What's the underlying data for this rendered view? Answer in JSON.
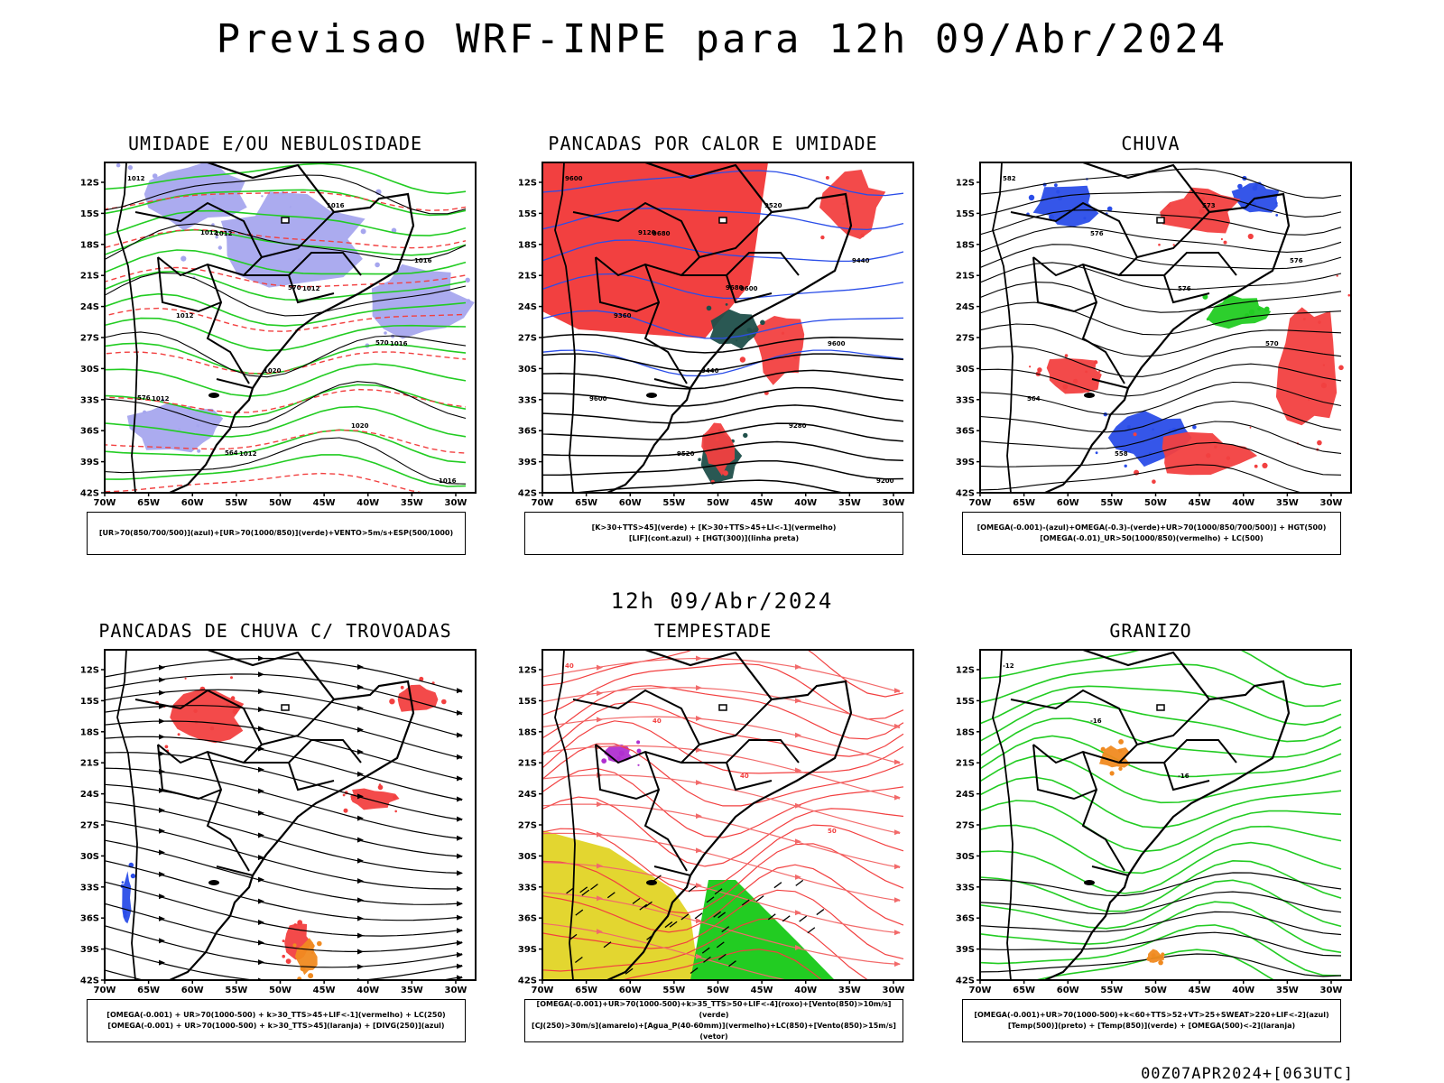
{
  "title": "Previsao WRF-INPE  para 12h 09/Abr/2024",
  "mid_title": "12h 09/Abr/2024",
  "run_stamp": "00Z07APR2024+[063UTC]",
  "axes": {
    "lat_labels": [
      "12S",
      "15S",
      "18S",
      "21S",
      "24S",
      "27S",
      "30S",
      "33S",
      "36S",
      "39S",
      "42S"
    ],
    "lon_labels": [
      "70W",
      "65W",
      "60W",
      "55W",
      "50W",
      "45W",
      "40W",
      "35W",
      "30W"
    ]
  },
  "colors": {
    "red": "#f24040",
    "blue": "#2a4de8",
    "green": "#22cc22",
    "lavender": "#a6a6ee",
    "darkteal": "#1f4f4a",
    "yellow": "#e3d630",
    "orange": "#f08a20",
    "purple": "#b030d0",
    "salmon": "#f26a6a"
  },
  "panels": [
    {
      "title": "UMIDADE E/OU NEBULOSIDADE",
      "legend": [
        "[UR>70(850/700/500)](azul)+[UR>70(1000/850)](verde)+VENTO>5m/s+ESP(500/1000)"
      ],
      "labels": [
        "1012",
        "1012",
        "1012",
        "1016",
        "1012",
        "1012",
        "1016",
        "1016",
        "1012",
        "1020",
        "1020",
        "1016",
        "1012",
        "570",
        "570",
        "576",
        "564"
      ]
    },
    {
      "title": "PANCADAS POR CALOR E UMIDADE",
      "legend": [
        "[K>30+TTS>45](verde) + [K>30+TTS>45+LI<-1](vermelho)",
        "[LIF](cont.azul) + [HGT(300)](linha preta)"
      ],
      "labels": [
        "9600",
        "9680",
        "9600",
        "9600",
        "9600",
        "9520",
        "9520",
        "9440",
        "9360",
        "9440",
        "9280",
        "9200",
        "9120",
        "9680"
      ]
    },
    {
      "title": "CHUVA",
      "legend": [
        "[OMEGA(-0.001)-(azul)+OMEGA(-0.3)-(verde)+UR>70(1000/850/700/500)] + HGT(500)",
        "[OMEGA(-0.01)_UR>50(1000/850)(vermelho) + LC(500)"
      ],
      "labels": [
        "582",
        "576",
        "576",
        "570",
        "564",
        "558",
        "573",
        "576"
      ]
    },
    {
      "title": "PANCADAS DE CHUVA C/ TROVOADAS",
      "legend": [
        "[OMEGA(-0.001) + UR>70(1000-500) + k>30_TTS>45+LIF<-1](vermelho) + LC(250)",
        "[OMEGA(-0.001) + UR>70(1000-500) + k>30_TTS>45](laranja) + [DIVG(250)](azul)"
      ],
      "labels": []
    },
    {
      "title": "TEMPESTADE",
      "legend": [
        "[OMEGA(-0.001)+UR>70(1000-500)+k>35_TTS>50+LIF<-4](roxo)+[Vento(850)>10m/s](verde)",
        "[CJ(250)>30m/s](amarelo)+[Agua_P(40-60mm)](vermelho)+LC(850)+[Vento(850)>15m/s](vetor)"
      ],
      "labels": [
        "40",
        "40",
        "40",
        "50"
      ]
    },
    {
      "title": "GRANIZO",
      "legend": [
        "[OMEGA(-0.001)+UR>70(1000-500)+k<60+TTS>52+VT>25+SWEAT>220+LIF<-2](azul)",
        "[Temp(500)](preto) + [Temp(850)](verde) + [OMEGA(500)<-2](laranja)"
      ],
      "labels": [
        "-12",
        "-16",
        "-16"
      ]
    }
  ]
}
